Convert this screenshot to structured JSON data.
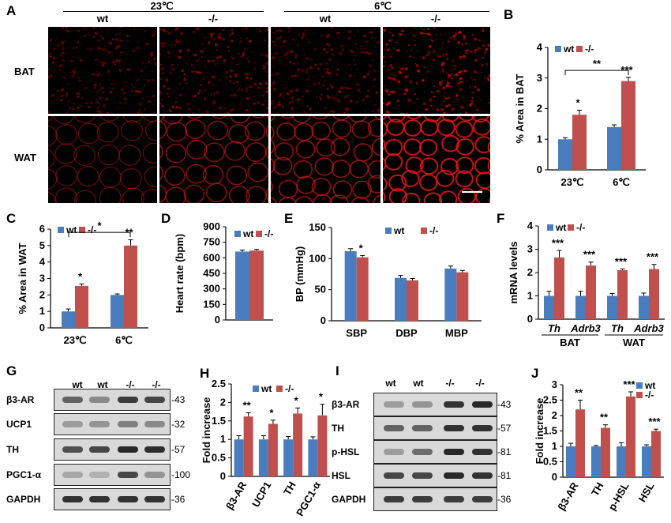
{
  "colors": {
    "wt": "#4a7cc0",
    "ko": "#c0504d",
    "band": "#1a1a1a"
  },
  "panelA": {
    "letter": "A",
    "group_23": "23℃",
    "group_6": "6℃",
    "col_labels": [
      "wt",
      "-/-",
      "wt",
      "-/-"
    ],
    "row_labels": [
      "BAT",
      "WAT"
    ]
  },
  "panelB": {
    "letter": "B",
    "ylabel": "% Area in BAT",
    "yticks": [
      "0",
      "1",
      "2",
      "3",
      "4"
    ],
    "legend": [
      "wt",
      "-/-"
    ],
    "chart_data": {
      "type": "bar",
      "categories": [
        "23℃",
        "6℃"
      ],
      "ylim": [
        0,
        4
      ],
      "series": [
        {
          "name": "wt",
          "values": [
            1.0,
            1.4
          ],
          "err": [
            0.05,
            0.07
          ]
        },
        {
          "name": "-/-",
          "values": [
            1.8,
            2.9
          ],
          "err": [
            0.15,
            0.12
          ]
        }
      ]
    },
    "sig": [
      "*",
      "***"
    ],
    "bracket": "**"
  },
  "panelC": {
    "letter": "C",
    "ylabel": "% Area in WAT",
    "yticks": [
      "0",
      "1",
      "2",
      "3",
      "4",
      "5",
      "6"
    ],
    "legend": [
      "wt",
      "-/-"
    ],
    "chart_data": {
      "type": "bar",
      "categories": [
        "23℃",
        "6℃"
      ],
      "ylim": [
        0,
        6
      ],
      "series": [
        {
          "name": "wt",
          "values": [
            1.0,
            2.0
          ],
          "err": [
            0.15,
            0.06
          ]
        },
        {
          "name": "-/-",
          "values": [
            2.55,
            5.0
          ],
          "err": [
            0.12,
            0.35
          ]
        }
      ]
    },
    "sig": [
      "*",
      "**"
    ],
    "bracket": "*"
  },
  "panelD": {
    "letter": "D",
    "ylabel": "Heart rate (bpm)",
    "yticks": [
      "0",
      "150",
      "300",
      "450",
      "600",
      "750",
      "900"
    ],
    "legend": [
      "wt",
      "-/-"
    ],
    "chart_data": {
      "type": "bar",
      "categories": [
        ""
      ],
      "ylim": [
        0,
        900
      ],
      "series": [
        {
          "name": "wt",
          "values": [
            660
          ],
          "err": [
            15
          ]
        },
        {
          "name": "-/-",
          "values": [
            670
          ],
          "err": [
            12
          ]
        }
      ]
    }
  },
  "panelE": {
    "letter": "E",
    "ylabel": "BP (mmHg)",
    "yticks": [
      "0",
      "50",
      "100",
      "150"
    ],
    "legend": [
      "wt",
      "-/-"
    ],
    "chart_data": {
      "type": "bar",
      "categories": [
        "SBP",
        "DBP",
        "MBP"
      ],
      "ylim": [
        0,
        150
      ],
      "series": [
        {
          "name": "wt",
          "values": [
            112,
            69,
            84
          ],
          "err": [
            4,
            4,
            4
          ]
        },
        {
          "name": "-/-",
          "values": [
            102,
            65,
            78
          ],
          "err": [
            3,
            3,
            3
          ]
        }
      ]
    },
    "sig": [
      "*",
      "",
      ""
    ]
  },
  "panelF": {
    "letter": "F",
    "ylabel": "mRNA levels",
    "yticks": [
      "0",
      "1",
      "2",
      "3",
      "4"
    ],
    "legend": [
      "wt",
      "-/-"
    ],
    "chart_data": {
      "type": "bar",
      "categories": [
        "Th",
        "Adrb3",
        "Th",
        "Adrb3"
      ],
      "ylim": [
        0,
        4
      ],
      "series": [
        {
          "name": "wt",
          "values": [
            1.0,
            1.0,
            1.0,
            1.0
          ],
          "err": [
            0.2,
            0.2,
            0.1,
            0.12
          ]
        },
        {
          "name": "-/-",
          "values": [
            2.65,
            2.3,
            2.1,
            2.15
          ],
          "err": [
            0.3,
            0.15,
            0.05,
            0.2
          ]
        }
      ]
    },
    "sig": [
      "***",
      "***",
      "***",
      "***"
    ],
    "groups": [
      "BAT",
      "WAT"
    ]
  },
  "panelG": {
    "letter": "G",
    "lanes": [
      "wt",
      "wt",
      "-/-",
      "-/-"
    ],
    "rows": [
      {
        "name": "β3-AR",
        "mw": "-43"
      },
      {
        "name": "UCP1",
        "mw": "-32"
      },
      {
        "name": "TH",
        "mw": "-57"
      },
      {
        "name": "PGC1-α",
        "mw": "-100"
      },
      {
        "name": "GAPDH",
        "mw": "-36"
      }
    ]
  },
  "panelH": {
    "letter": "H",
    "ylabel": "Fold increase",
    "yticks": [
      "0",
      "0.5",
      "1",
      "1.5",
      "2",
      "2.5"
    ],
    "legend": [
      "wt",
      "-/-"
    ],
    "chart_data": {
      "type": "bar",
      "categories": [
        "β3-AR",
        "UCP1",
        "TH",
        "PGC1-α"
      ],
      "ylim": [
        0,
        2.5
      ],
      "series": [
        {
          "name": "wt",
          "values": [
            1.0,
            1.0,
            1.0,
            1.0
          ],
          "err": [
            0.1,
            0.1,
            0.08,
            0.07
          ]
        },
        {
          "name": "-/-",
          "values": [
            1.62,
            1.42,
            1.7,
            1.65
          ],
          "err": [
            0.1,
            0.1,
            0.15,
            0.3
          ]
        }
      ]
    },
    "sig": [
      "**",
      "*",
      "*",
      "*"
    ]
  },
  "panelI": {
    "letter": "I",
    "lanes": [
      "wt",
      "wt",
      "-/-",
      "-/-"
    ],
    "rows": [
      {
        "name": "β3-AR",
        "mw": "-43"
      },
      {
        "name": "TH",
        "mw": "-57"
      },
      {
        "name": "p-HSL",
        "mw": "-81"
      },
      {
        "name": "HSL",
        "mw": "-81"
      },
      {
        "name": "GAPDH",
        "mw": "-36"
      }
    ]
  },
  "panelJ": {
    "letter": "J",
    "ylabel": "Fold increase",
    "yticks": [
      "0",
      "0.5",
      "1",
      "1.5",
      "2",
      "2.5",
      "3"
    ],
    "legend": [
      "wt",
      "-/-"
    ],
    "chart_data": {
      "type": "bar",
      "categories": [
        "β3-AR",
        "TH",
        "p-HSL",
        "HSL"
      ],
      "ylim": [
        0,
        3
      ],
      "series": [
        {
          "name": "wt",
          "values": [
            1.0,
            1.0,
            1.0,
            1.0
          ],
          "err": [
            0.1,
            0.03,
            0.12,
            0.05
          ]
        },
        {
          "name": "-/-",
          "values": [
            2.2,
            1.6,
            2.62,
            1.5
          ],
          "err": [
            0.3,
            0.1,
            0.15,
            0.06
          ]
        }
      ]
    },
    "sig": [
      "**",
      "**",
      "***",
      "***"
    ]
  }
}
